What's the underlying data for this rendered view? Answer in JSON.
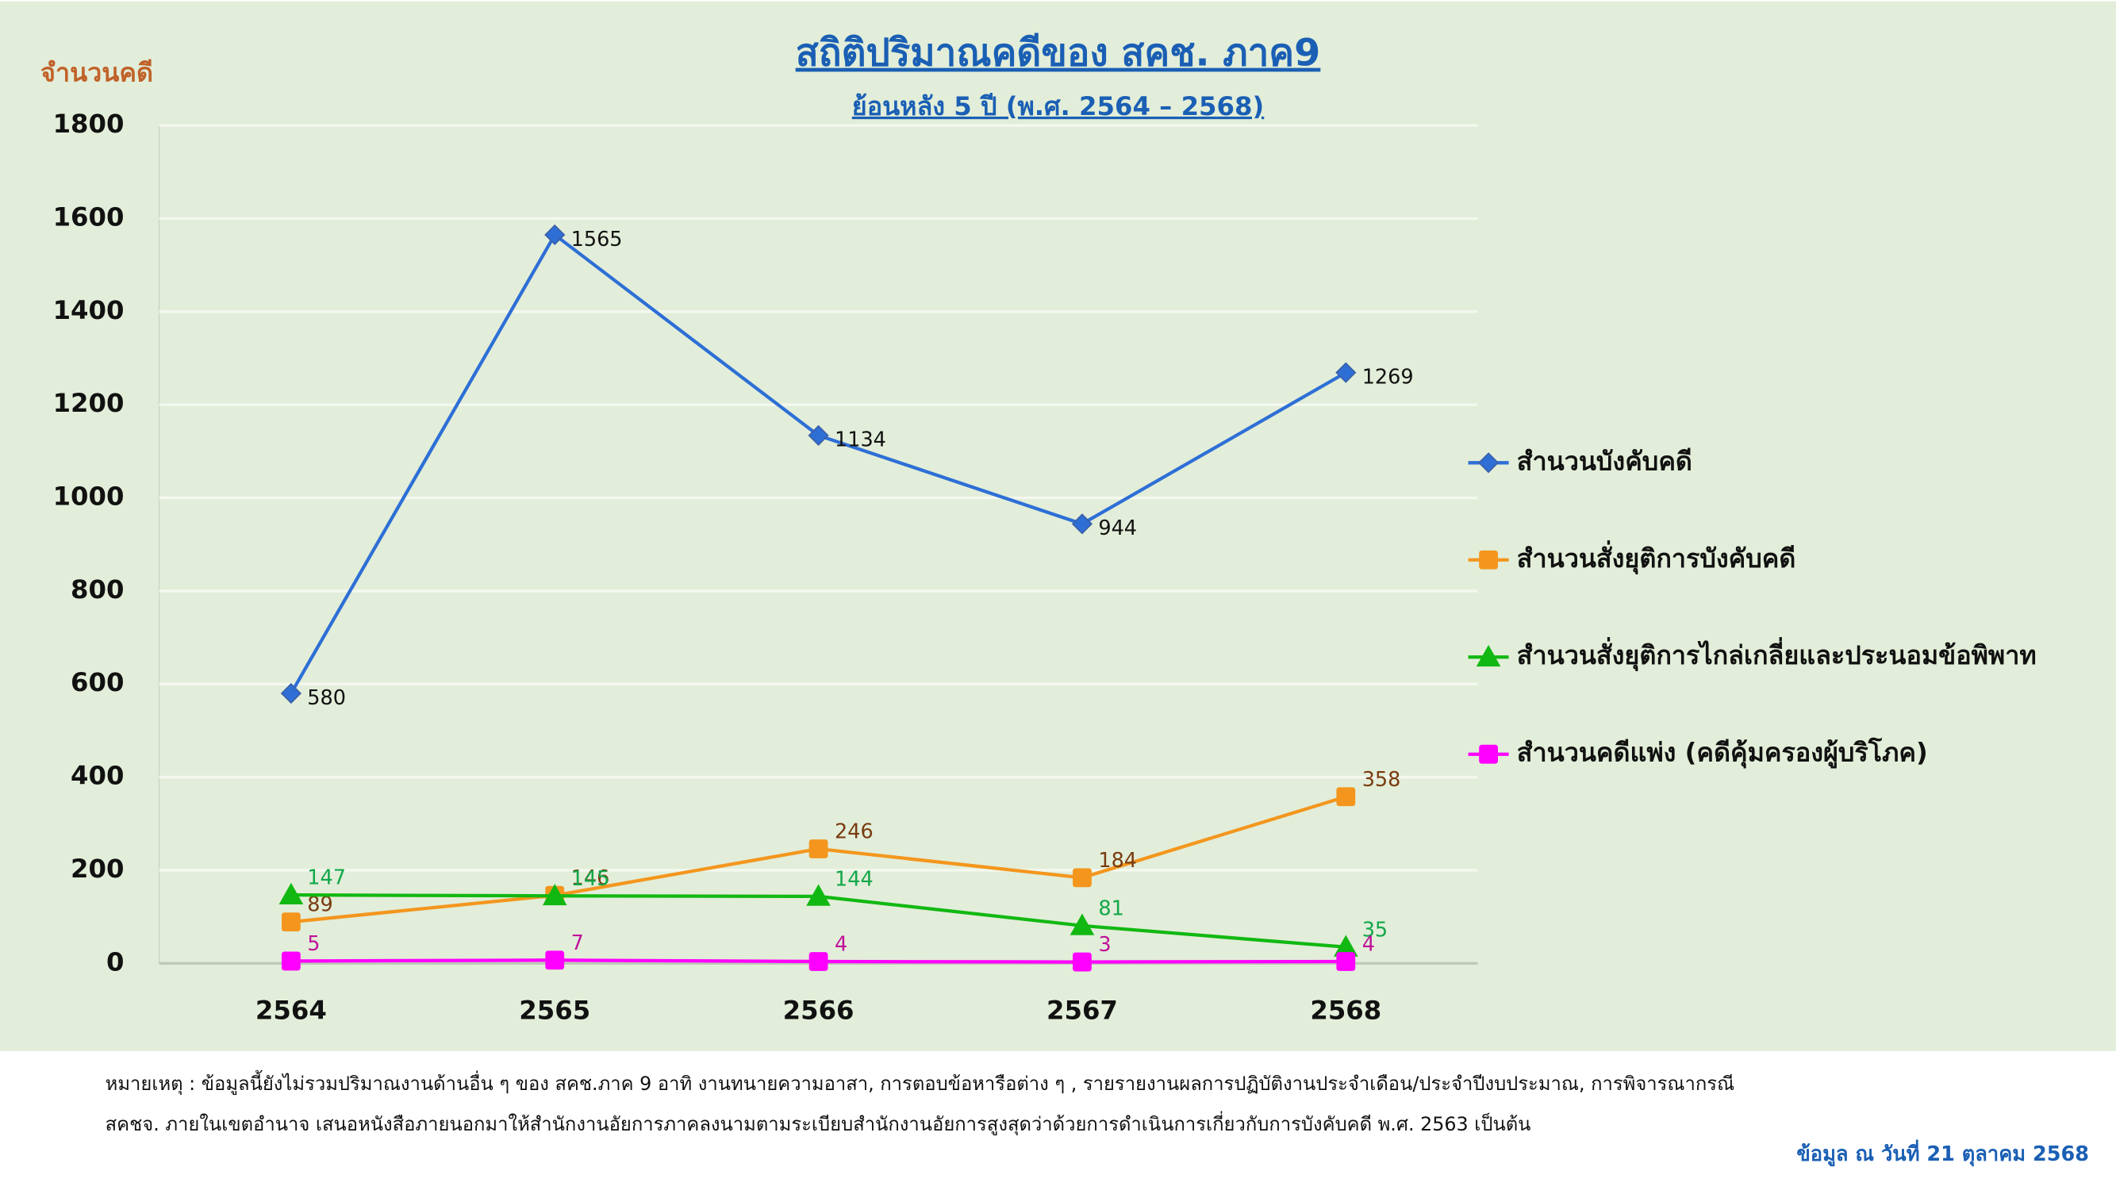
{
  "chart_data": {
    "type": "line",
    "title": "สถิติปริมาณคดีของ สคช. ภาค9",
    "subtitle": "ย้อนหลัง 5 ปี (พ.ศ. 2564 – 2568)",
    "y_label": "จำนวนคดี",
    "categories": [
      "2564",
      "2565",
      "2566",
      "2567",
      "2568"
    ],
    "series": [
      {
        "name": "สำนวนบังคับคดี",
        "color": "#2e6fd6",
        "marker": "diamond",
        "label_color": "#111111",
        "values": [
          580,
          1565,
          1134,
          944,
          1269
        ]
      },
      {
        "name": "สำนวนสั่งยุติการบังคับคดี",
        "color": "#f4961e",
        "marker": "square",
        "label_color": "#7a3b10",
        "values": [
          89,
          146,
          246,
          184,
          358
        ]
      },
      {
        "name": "สำนวนสั่งยุติการไกล่เกลี่ยและประนอมข้อพิพาท",
        "color": "#12b812",
        "marker": "triangle",
        "label_color": "#12a84a",
        "values": [
          147,
          145,
          144,
          81,
          35
        ]
      },
      {
        "name": "สำนวนคดีแพ่ง (คดีคุ้มครองผู้บริโภค)",
        "color": "#ff00ff",
        "marker": "square",
        "label_color": "#c0129a",
        "values": [
          5,
          7,
          4,
          3,
          4
        ]
      }
    ],
    "ylim": [
      0,
      1800
    ],
    "yticks": [
      0,
      200,
      400,
      600,
      800,
      1000,
      1200,
      1400,
      1600,
      1800
    ],
    "grid": true,
    "legend": "right",
    "footnote": [
      "หมายเหตุ : ข้อมูลนี้ยังไม่รวมปริมาณงานด้านอื่น ๆ ของ สคช.ภาค 9 อาทิ งานทนายความอาสา, การตอบข้อหารือต่าง ๆ , รายรายงานผลการปฏิบัติงานประจำเดือน/ประจำปีงบประมาณ, การพิจารณากรณี",
      "สคชจ. ภายในเขตอำนาจ เสนอหนังสือภายนอกมาให้สำนักงานอัยการภาคลงนามตามระเบียบสำนักงานอัยการสูงสุดว่าด้วยการดำเนินการเกี่ยวกับการบังคับคดี พ.ศ. 2563 เป็นต้น"
    ],
    "date_note": "ข้อมูล ณ วันที่ 21 ตุลาคม 2568"
  }
}
